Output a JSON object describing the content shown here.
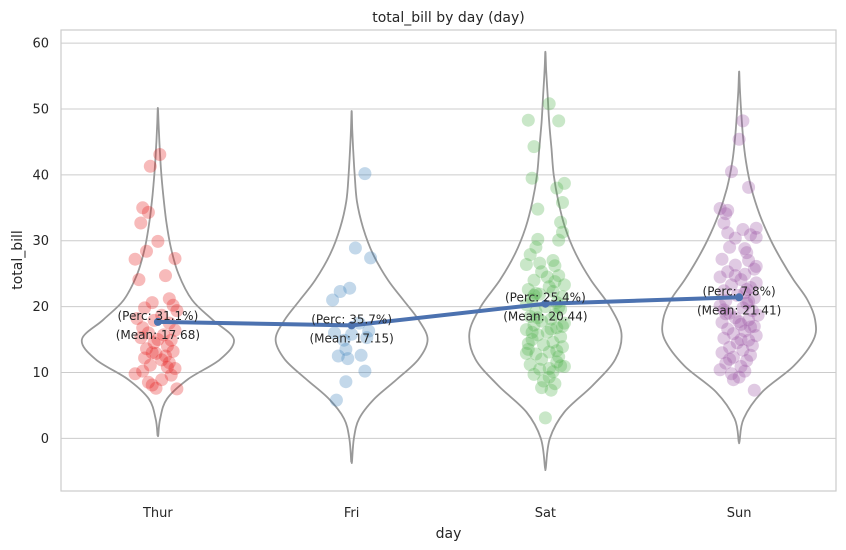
{
  "chart_data": {
    "type": "violin",
    "title": "total_bill by day (day)",
    "xlabel": "day",
    "ylabel": "total_bill",
    "categories": [
      "Thur",
      "Fri",
      "Sat",
      "Sun"
    ],
    "ylim": [
      -8,
      62
    ],
    "yticks": [
      0,
      10,
      20,
      30,
      40,
      50,
      60
    ],
    "grid": "horizontal",
    "colors": {
      "Thur": "#e41a1c",
      "Fri": "#377eb8",
      "Sat": "#4daf4a",
      "Sun": "#984ea3",
      "violin_outline": "#999999",
      "mean_line": "#4c72b0"
    },
    "means": [
      17.68,
      17.15,
      20.44,
      21.41
    ],
    "annotations": [
      {
        "category": "Thur",
        "perc": "(Perc: 31.1%)",
        "mean": "(Mean: 17.68)"
      },
      {
        "category": "Fri",
        "perc": "(Perc: 35.7%)",
        "mean": "(Mean: 17.15)"
      },
      {
        "category": "Sat",
        "perc": "(Perc: 25.4%)",
        "mean": "(Mean: 20.44)"
      },
      {
        "category": "Sun",
        "perc": "(Perc: 7.8%)",
        "mean": "(Mean: 21.41)"
      }
    ],
    "violins": [
      {
        "category": "Thur",
        "y": [
          0.5,
          3,
          6,
          9,
          12,
          15,
          18,
          21,
          25,
          29,
          33,
          37,
          41,
          45,
          48,
          50
        ],
        "w": [
          0.005,
          0.03,
          0.12,
          0.4,
          0.82,
          1.0,
          0.72,
          0.45,
          0.27,
          0.17,
          0.11,
          0.07,
          0.04,
          0.02,
          0.008,
          0.002
        ]
      },
      {
        "category": "Fri",
        "y": [
          -3.5,
          0,
          3,
          6,
          9,
          12,
          15,
          18,
          21,
          24,
          28,
          32,
          36,
          40,
          44,
          47,
          49.5
        ],
        "w": [
          0.005,
          0.03,
          0.1,
          0.3,
          0.6,
          0.88,
          1.0,
          0.88,
          0.68,
          0.48,
          0.28,
          0.15,
          0.07,
          0.04,
          0.02,
          0.008,
          0.002
        ]
      },
      {
        "category": "Sat",
        "y": [
          -4.5,
          0,
          4,
          8,
          12,
          16,
          20,
          24,
          28,
          32,
          36,
          40,
          44,
          48,
          52,
          56,
          58.5
        ],
        "w": [
          0.005,
          0.06,
          0.25,
          0.62,
          0.92,
          1.0,
          0.85,
          0.6,
          0.4,
          0.26,
          0.17,
          0.11,
          0.08,
          0.05,
          0.03,
          0.01,
          0.002
        ]
      },
      {
        "category": "Sun",
        "y": [
          -0.5,
          3,
          7,
          11,
          15,
          18,
          21,
          24,
          27,
          30,
          34,
          38,
          42,
          46,
          50,
          53,
          55.5
        ],
        "w": [
          0.005,
          0.06,
          0.3,
          0.72,
          0.98,
          1.0,
          0.9,
          0.72,
          0.56,
          0.42,
          0.27,
          0.16,
          0.09,
          0.05,
          0.025,
          0.01,
          0.002
        ]
      }
    ],
    "points": [
      {
        "category": "Thur",
        "values": [
          [
            -0.12,
            27.2
          ],
          [
            0.01,
            43.1
          ],
          [
            -0.04,
            41.3
          ],
          [
            -0.08,
            35.0
          ],
          [
            -0.05,
            34.3
          ],
          [
            -0.09,
            32.7
          ],
          [
            0.0,
            29.9
          ],
          [
            -0.06,
            28.4
          ],
          [
            0.09,
            27.3
          ],
          [
            -0.1,
            24.1
          ],
          [
            0.04,
            24.7
          ],
          [
            0.06,
            21.2
          ],
          [
            -0.03,
            20.6
          ],
          [
            0.08,
            20.2
          ],
          [
            -0.07,
            19.8
          ],
          [
            0.1,
            19.4
          ],
          [
            -0.11,
            18.2
          ],
          [
            0.02,
            18.7
          ],
          [
            -0.02,
            17.9
          ],
          [
            0.06,
            17.5
          ],
          [
            -0.08,
            16.8
          ],
          [
            0.09,
            16.4
          ],
          [
            -0.05,
            16.0
          ],
          [
            0.03,
            15.7
          ],
          [
            -0.09,
            15.3
          ],
          [
            0.07,
            14.9
          ],
          [
            -0.02,
            14.5
          ],
          [
            0.05,
            14.0
          ],
          [
            -0.06,
            13.6
          ],
          [
            0.08,
            13.2
          ],
          [
            -0.01,
            12.9
          ],
          [
            0.04,
            12.5
          ],
          [
            -0.07,
            12.2
          ],
          [
            0.02,
            11.9
          ],
          [
            0.06,
            11.5
          ],
          [
            -0.04,
            11.1
          ],
          [
            0.09,
            10.6
          ],
          [
            -0.08,
            10.2
          ],
          [
            -0.12,
            9.8
          ],
          [
            0.07,
            9.6
          ],
          [
            0.02,
            8.9
          ],
          [
            -0.05,
            8.5
          ],
          [
            -0.03,
            8.1
          ],
          [
            -0.01,
            7.6
          ],
          [
            0.1,
            7.5
          ],
          [
            0.05,
            10.8
          ],
          [
            -0.03,
            13.0
          ],
          [
            0.0,
            15.0
          ]
        ]
      },
      {
        "category": "Fri",
        "values": [
          [
            0.07,
            40.2
          ],
          [
            0.02,
            28.9
          ],
          [
            0.1,
            27.4
          ],
          [
            -0.01,
            22.8
          ],
          [
            -0.06,
            22.3
          ],
          [
            -0.1,
            21.0
          ],
          [
            0.04,
            17.5
          ],
          [
            0.09,
            16.3
          ],
          [
            -0.09,
            16.0
          ],
          [
            -0.04,
            14.9
          ],
          [
            0.08,
            15.3
          ],
          [
            -0.03,
            13.5
          ],
          [
            -0.07,
            12.5
          ],
          [
            0.05,
            12.6
          ],
          [
            -0.02,
            12.1
          ],
          [
            0.07,
            10.2
          ],
          [
            -0.03,
            8.6
          ],
          [
            -0.08,
            5.8
          ],
          [
            0.0,
            15.8
          ]
        ]
      },
      {
        "category": "Sat",
        "values": [
          [
            0.02,
            50.8
          ],
          [
            -0.09,
            48.3
          ],
          [
            0.07,
            48.2
          ],
          [
            -0.06,
            44.3
          ],
          [
            -0.07,
            39.5
          ],
          [
            0.1,
            38.7
          ],
          [
            0.06,
            38.0
          ],
          [
            0.09,
            35.8
          ],
          [
            -0.04,
            34.8
          ],
          [
            0.08,
            32.8
          ],
          [
            0.09,
            31.3
          ],
          [
            0.07,
            30.1
          ],
          [
            -0.04,
            30.2
          ],
          [
            -0.05,
            29.0
          ],
          [
            -0.08,
            27.9
          ],
          [
            0.04,
            27.0
          ],
          [
            -0.1,
            26.4
          ],
          [
            0.05,
            26.2
          ],
          [
            -0.02,
            25.3
          ],
          [
            0.07,
            24.7
          ],
          [
            -0.06,
            24.0
          ],
          [
            0.1,
            23.3
          ],
          [
            0.02,
            23.0
          ],
          [
            -0.09,
            22.6
          ],
          [
            0.04,
            22.3
          ],
          [
            -0.03,
            21.9
          ],
          [
            0.09,
            21.5
          ],
          [
            -0.07,
            21.1
          ],
          [
            0.06,
            20.6
          ],
          [
            -0.1,
            20.3
          ],
          [
            0.0,
            20.0
          ],
          [
            0.08,
            19.6
          ],
          [
            -0.05,
            19.2
          ],
          [
            0.05,
            18.8
          ],
          [
            -0.08,
            18.5
          ],
          [
            0.03,
            18.1
          ],
          [
            -0.02,
            17.8
          ],
          [
            0.1,
            17.5
          ],
          [
            -0.06,
            17.2
          ],
          [
            0.06,
            16.8
          ],
          [
            -0.1,
            16.5
          ],
          [
            0.01,
            16.1
          ],
          [
            -0.04,
            15.7
          ],
          [
            0.08,
            15.4
          ],
          [
            -0.07,
            15.0
          ],
          [
            0.04,
            14.6
          ],
          [
            -0.01,
            14.2
          ],
          [
            0.09,
            13.9
          ],
          [
            -0.09,
            13.5
          ],
          [
            0.02,
            13.1
          ],
          [
            -0.05,
            12.8
          ],
          [
            0.07,
            12.4
          ],
          [
            -0.02,
            12.0
          ],
          [
            0.06,
            11.6
          ],
          [
            -0.08,
            11.2
          ],
          [
            0.1,
            10.9
          ],
          [
            -0.03,
            10.5
          ],
          [
            0.04,
            10.1
          ],
          [
            -0.06,
            9.7
          ],
          [
            0.02,
            9.3
          ],
          [
            -0.01,
            8.7
          ],
          [
            0.05,
            8.3
          ],
          [
            -0.02,
            7.7
          ],
          [
            0.03,
            7.3
          ],
          [
            0.0,
            3.1
          ],
          [
            0.08,
            11.0
          ],
          [
            -0.09,
            14.4
          ],
          [
            0.03,
            16.6
          ],
          [
            -0.04,
            18.3
          ],
          [
            0.07,
            19.9
          ],
          [
            -0.06,
            21.7
          ],
          [
            0.05,
            23.8
          ],
          [
            -0.1,
            12.9
          ],
          [
            0.09,
            17.0
          ],
          [
            -0.03,
            26.6
          ],
          [
            0.01,
            24.5
          ],
          [
            0.06,
            13.3
          ],
          [
            -0.07,
            16.1
          ],
          [
            0.02,
            10.6
          ],
          [
            -0.05,
            22.0
          ]
        ]
      },
      {
        "category": "Sun",
        "values": [
          [
            0.02,
            48.2
          ],
          [
            0.0,
            45.4
          ],
          [
            -0.04,
            40.5
          ],
          [
            0.05,
            38.1
          ],
          [
            -0.1,
            34.9
          ],
          [
            -0.06,
            34.6
          ],
          [
            -0.07,
            34.1
          ],
          [
            -0.08,
            32.7
          ],
          [
            0.09,
            31.9
          ],
          [
            0.02,
            31.7
          ],
          [
            0.06,
            30.9
          ],
          [
            -0.02,
            30.4
          ],
          [
            0.09,
            30.5
          ],
          [
            -0.05,
            29.0
          ],
          [
            0.04,
            28.2
          ],
          [
            -0.09,
            27.2
          ],
          [
            0.05,
            27.0
          ],
          [
            -0.02,
            26.3
          ],
          [
            0.08,
            25.7
          ],
          [
            -0.06,
            25.3
          ],
          [
            0.03,
            24.9
          ],
          [
            -0.1,
            24.5
          ],
          [
            0.01,
            24.1
          ],
          [
            0.09,
            23.6
          ],
          [
            -0.04,
            23.3
          ],
          [
            0.06,
            22.9
          ],
          [
            -0.08,
            22.4
          ],
          [
            0.03,
            22.1
          ],
          [
            -0.01,
            21.7
          ],
          [
            0.08,
            21.3
          ],
          [
            -0.07,
            20.9
          ],
          [
            0.04,
            20.5
          ],
          [
            -0.1,
            20.1
          ],
          [
            0.02,
            19.8
          ],
          [
            0.07,
            19.4
          ],
          [
            -0.05,
            19.0
          ],
          [
            0.1,
            18.7
          ],
          [
            -0.02,
            18.3
          ],
          [
            0.05,
            18.0
          ],
          [
            -0.09,
            17.6
          ],
          [
            0.01,
            17.3
          ],
          [
            0.08,
            17.0
          ],
          [
            -0.06,
            16.6
          ],
          [
            0.03,
            16.3
          ],
          [
            -0.03,
            15.9
          ],
          [
            0.09,
            15.6
          ],
          [
            -0.08,
            15.2
          ],
          [
            0.05,
            14.9
          ],
          [
            -0.01,
            14.5
          ],
          [
            0.07,
            14.1
          ],
          [
            -0.05,
            13.8
          ],
          [
            0.02,
            13.4
          ],
          [
            -0.09,
            13.0
          ],
          [
            0.06,
            12.6
          ],
          [
            -0.03,
            12.3
          ],
          [
            0.04,
            11.8
          ],
          [
            -0.07,
            11.4
          ],
          [
            0.01,
            10.9
          ],
          [
            -0.1,
            10.4
          ],
          [
            0.03,
            10.2
          ],
          [
            -0.04,
            9.8
          ],
          [
            0.0,
            9.3
          ],
          [
            -0.03,
            8.9
          ],
          [
            0.08,
            7.3
          ],
          [
            0.06,
            16.9
          ],
          [
            -0.07,
            18.9
          ],
          [
            0.04,
            22.6
          ],
          [
            -0.02,
            24.7
          ],
          [
            0.09,
            26.1
          ],
          [
            -0.05,
            12.0
          ],
          [
            0.01,
            15.0
          ],
          [
            -0.08,
            19.5
          ],
          [
            0.05,
            20.8
          ],
          [
            0.03,
            28.8
          ],
          [
            -0.06,
            31.2
          ],
          [
            0.0,
            17.7
          ]
        ]
      }
    ]
  }
}
